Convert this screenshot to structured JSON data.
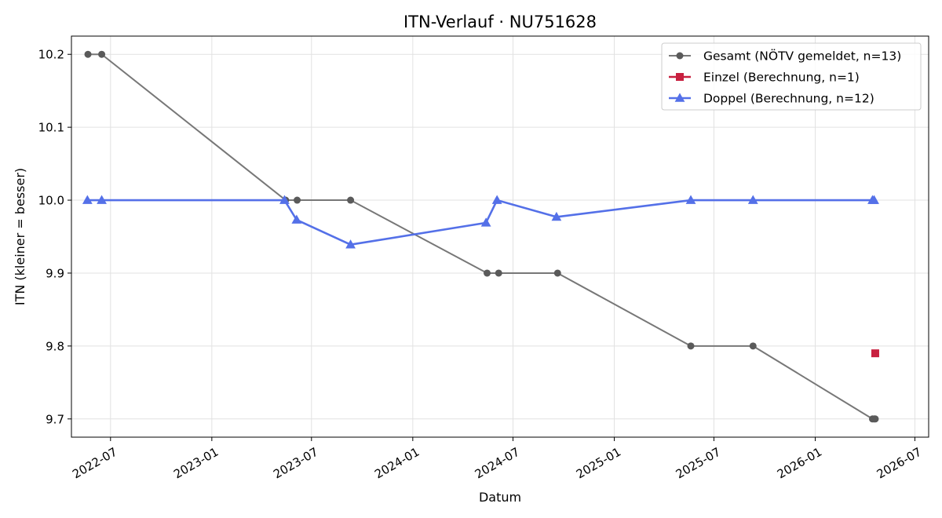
{
  "chart_data": {
    "type": "line",
    "title": "ITN-Verlauf · NU751628",
    "xlabel": "Datum",
    "ylabel": "ITN  (kleiner = besser)",
    "x_ticks": [
      "2022-07",
      "2023-01",
      "2023-07",
      "2024-01",
      "2024-07",
      "2025-01",
      "2025-07",
      "2026-01",
      "2026-07"
    ],
    "y_ticks": [
      "9.7",
      "9.8",
      "9.9",
      "10.0",
      "10.1",
      "10.2"
    ],
    "xlim": [
      "2022-04-21",
      "2026-07-26"
    ],
    "ylim": [
      9.675,
      10.225
    ],
    "grid": true,
    "legend_position": "top-right",
    "series": [
      {
        "name": "Gesamt (NÖTV gemeldet, n=13)",
        "color": "#777777",
        "marker": "circle",
        "points": [
          {
            "x": "2022-05-21",
            "y": 10.2
          },
          {
            "x": "2022-06-15",
            "y": 10.2
          },
          {
            "x": "2023-05-15",
            "y": 10.0
          },
          {
            "x": "2023-06-05",
            "y": 10.0
          },
          {
            "x": "2023-09-10",
            "y": 10.0
          },
          {
            "x": "2024-05-15",
            "y": 9.9
          },
          {
            "x": "2024-06-05",
            "y": 9.9
          },
          {
            "x": "2024-09-20",
            "y": 9.9
          },
          {
            "x": "2025-05-20",
            "y": 9.8
          },
          {
            "x": "2025-09-10",
            "y": 9.8
          },
          {
            "x": "2026-04-15",
            "y": 9.7
          },
          {
            "x": "2026-04-18",
            "y": 9.7
          },
          {
            "x": "2026-04-20",
            "y": 9.7
          }
        ]
      },
      {
        "name": "Einzel (Berechnung, n=1)",
        "color": "#c8203f",
        "marker": "square",
        "points": [
          {
            "x": "2026-04-20",
            "y": 9.79
          }
        ]
      },
      {
        "name": "Doppel (Berechnung, n=12)",
        "color": "#5470e8",
        "marker": "triangle",
        "points": [
          {
            "x": "2022-05-20",
            "y": 10.0
          },
          {
            "x": "2022-06-15",
            "y": 10.0
          },
          {
            "x": "2023-05-13",
            "y": 10.0
          },
          {
            "x": "2023-06-04",
            "y": 9.973
          },
          {
            "x": "2023-09-10",
            "y": 9.939
          },
          {
            "x": "2024-05-13",
            "y": 9.969
          },
          {
            "x": "2024-06-02",
            "y": 10.0
          },
          {
            "x": "2024-09-18",
            "y": 9.977
          },
          {
            "x": "2025-05-20",
            "y": 10.0
          },
          {
            "x": "2025-09-10",
            "y": 10.0
          },
          {
            "x": "2026-04-15",
            "y": 10.0
          },
          {
            "x": "2026-04-18",
            "y": 10.0
          }
        ]
      }
    ]
  }
}
